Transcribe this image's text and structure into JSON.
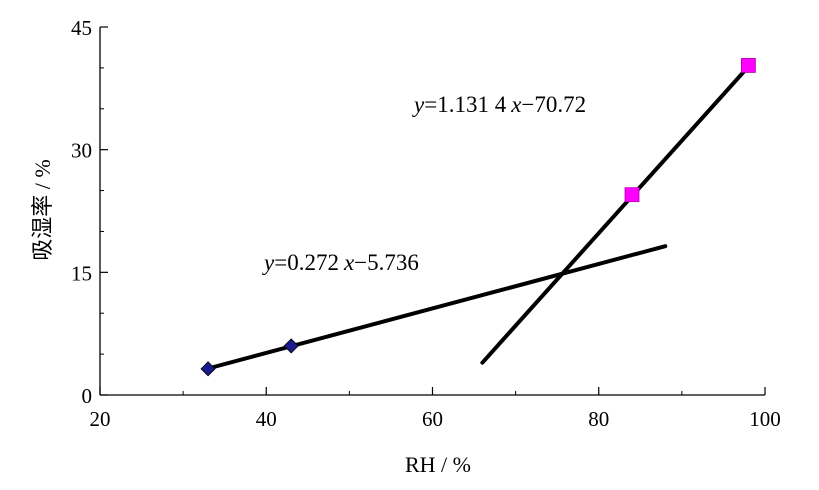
{
  "chart_data": {
    "type": "scatter",
    "title": "",
    "xlabel": "RH / %",
    "ylabel": "吸湿率 / %",
    "xlim": [
      20,
      100
    ],
    "ylim": [
      0,
      45
    ],
    "xticks": [
      20,
      40,
      60,
      80,
      100
    ],
    "yticks": [
      0,
      15,
      30,
      45
    ],
    "xtick_labels": [
      "20",
      "40",
      "60",
      "80",
      "100"
    ],
    "ytick_labels": [
      "0",
      "15",
      "30",
      "45"
    ],
    "grid": false,
    "legend": "none",
    "series": [
      {
        "marker": "diamond",
        "color": "#1a1a8c",
        "points": [
          {
            "x": 33,
            "y": 3.2
          },
          {
            "x": 43,
            "y": 6.0
          }
        ],
        "fit": {
          "slope": 0.272,
          "intercept": -5.736,
          "x_range": [
            33,
            88
          ]
        },
        "equation_label": "y=0.272 x−5.736"
      },
      {
        "marker": "square",
        "color": "#ff00ff",
        "points": [
          {
            "x": 84,
            "y": 24.5
          },
          {
            "x": 98,
            "y": 40.3
          }
        ],
        "fit": {
          "slope": 1.1314,
          "intercept": -70.72,
          "x_range": [
            66,
            98
          ]
        },
        "equation_label": "y=1.131 4 x−70.72"
      }
    ],
    "equations": [
      {
        "y": "y",
        "eq_sign": "=",
        "coef": "1.131 4",
        "x": "x",
        "minus": "−",
        "const": "70.72"
      },
      {
        "y": "y",
        "eq_sign": "=",
        "coef": "0.272",
        "x": "x",
        "minus": "−",
        "const": "5.736"
      }
    ]
  }
}
